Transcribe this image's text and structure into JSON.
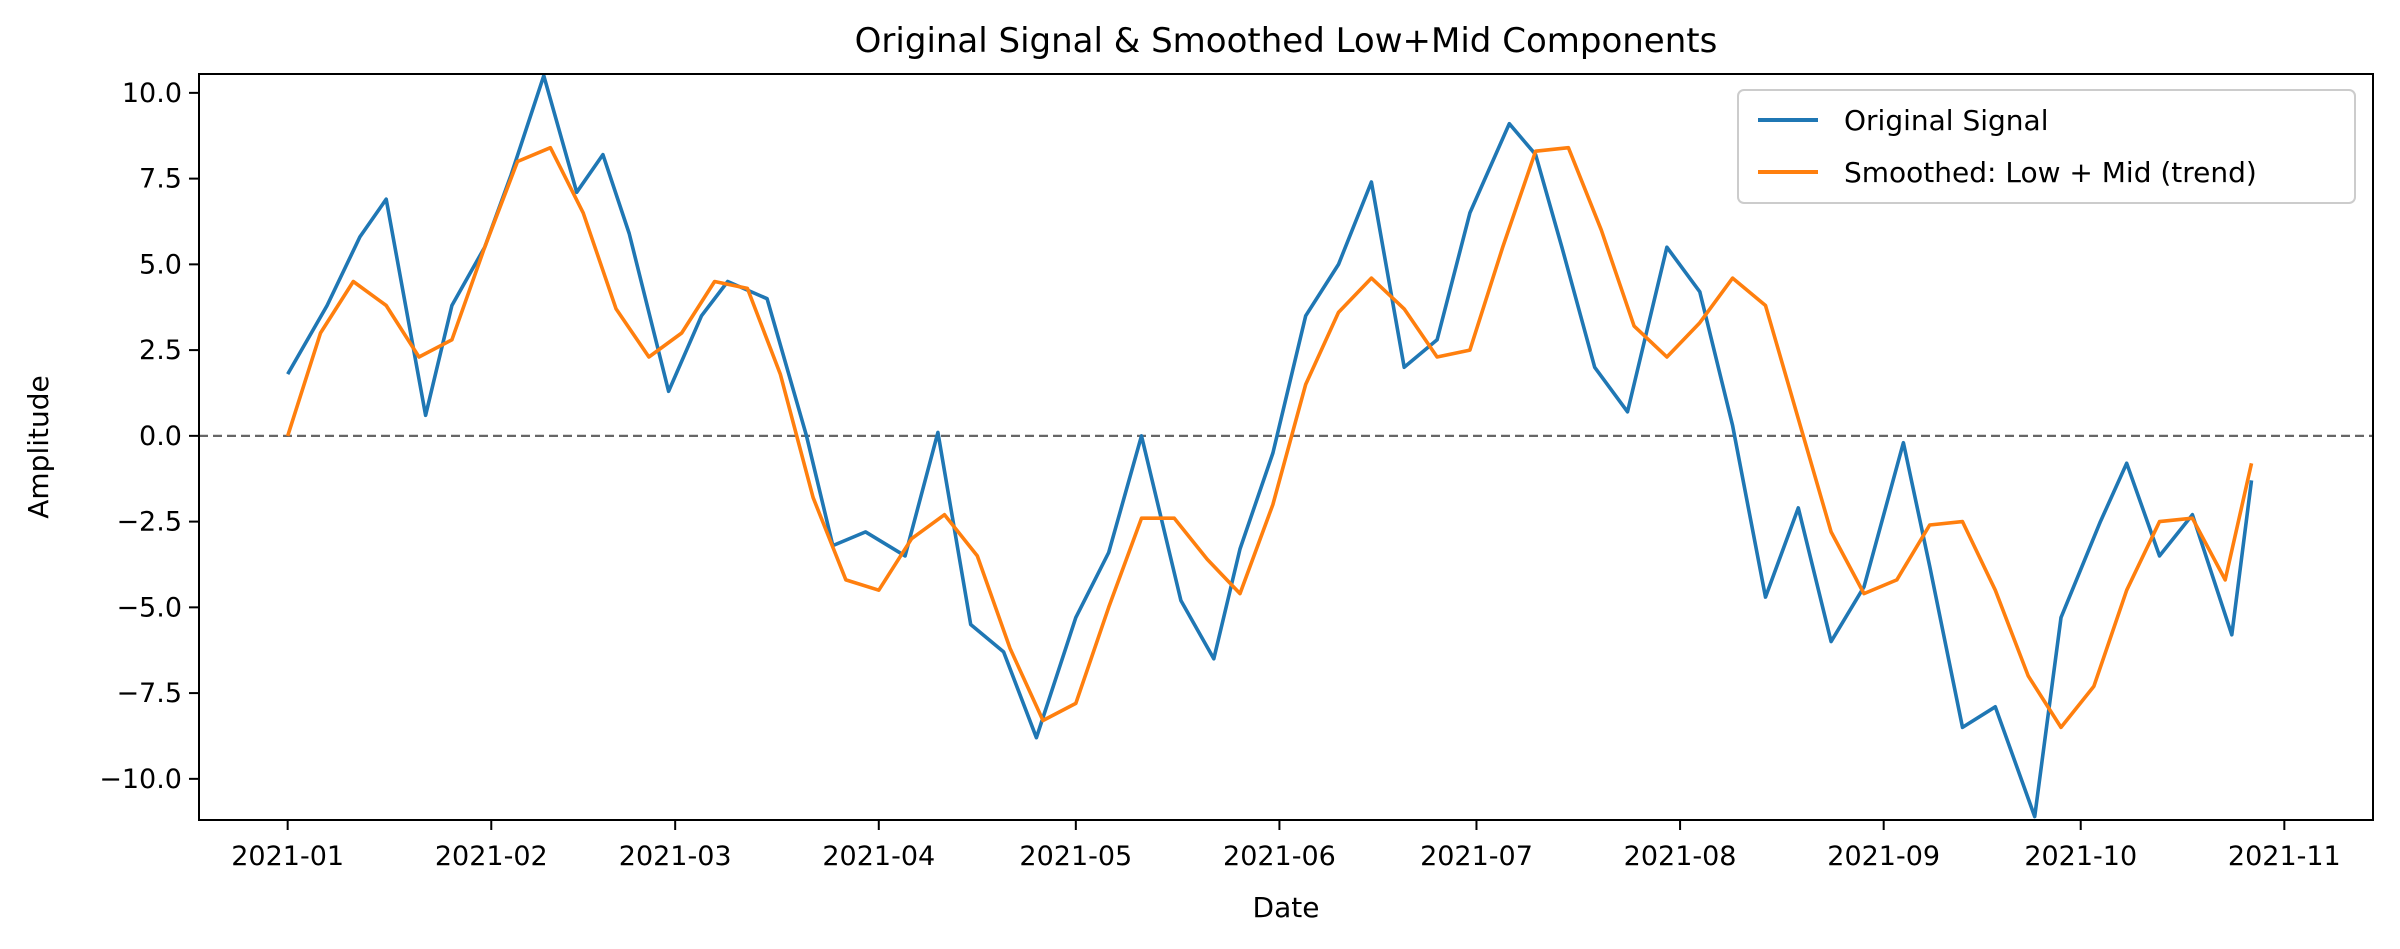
{
  "chart_data": {
    "type": "line",
    "title": "Original Signal & Smoothed Low+Mid Components",
    "xlabel": "Date",
    "ylabel": "Amplitude",
    "x_start": "2021-01-01",
    "x_end": "2021-10-27",
    "xlim_days": [
      -13.5,
      317.5
    ],
    "ylim": [
      -11.2,
      10.55
    ],
    "x_ticks": [
      {
        "label": "2021-01",
        "day": 0
      },
      {
        "label": "2021-02",
        "day": 31
      },
      {
        "label": "2021-03",
        "day": 59
      },
      {
        "label": "2021-04",
        "day": 90
      },
      {
        "label": "2021-05",
        "day": 120
      },
      {
        "label": "2021-06",
        "day": 151
      },
      {
        "label": "2021-07",
        "day": 181
      },
      {
        "label": "2021-08",
        "day": 212
      },
      {
        "label": "2021-09",
        "day": 243
      },
      {
        "label": "2021-10",
        "day": 273
      },
      {
        "label": "2021-11",
        "day": 304
      }
    ],
    "y_ticks": [
      {
        "label": "10.0",
        "value": 10.0
      },
      {
        "label": "7.5",
        "value": 7.5
      },
      {
        "label": "5.0",
        "value": 5.0
      },
      {
        "label": "2.5",
        "value": 2.5
      },
      {
        "label": "0.0",
        "value": 0.0
      },
      {
        "label": "−2.5",
        "value": -2.5
      },
      {
        "label": "−5.0",
        "value": -5.0
      },
      {
        "label": "−7.5",
        "value": -7.5
      },
      {
        "label": "−10.0",
        "value": -10.0
      }
    ],
    "reference_line": {
      "y": 0,
      "style": "dashed",
      "color": "#666666"
    },
    "legend": {
      "location": "top-right"
    },
    "series": [
      {
        "name": "Original Signal",
        "color": "#1f77b4",
        "x_days": [
          0,
          6,
          11,
          15,
          21,
          25,
          30,
          34,
          39,
          44,
          48,
          52,
          58,
          63,
          67,
          73,
          79,
          83,
          88,
          94,
          99,
          104,
          109,
          114,
          120,
          125,
          130,
          136,
          141,
          145,
          150,
          155,
          160,
          165,
          170,
          175,
          180,
          186,
          190,
          194,
          199,
          204,
          210,
          215,
          220,
          225,
          230,
          235,
          240,
          246,
          250,
          255,
          260,
          266,
          270,
          276,
          280,
          285,
          290,
          296,
          299
        ],
        "values": [
          1.8,
          3.8,
          5.8,
          6.9,
          0.6,
          3.8,
          5.5,
          7.6,
          10.5,
          7.1,
          8.2,
          5.9,
          1.3,
          3.5,
          4.5,
          4.0,
          0.0,
          -3.2,
          -2.8,
          -3.5,
          0.1,
          -5.5,
          -6.3,
          -8.8,
          -5.3,
          -3.4,
          0.0,
          -4.8,
          -6.5,
          -3.3,
          -0.5,
          3.5,
          5.0,
          7.4,
          2.0,
          2.8,
          6.5,
          9.1,
          8.2,
          5.5,
          2.0,
          0.7,
          5.5,
          4.2,
          0.3,
          -4.7,
          -2.1,
          -6.0,
          -4.4,
          -0.2,
          -3.8,
          -8.5,
          -7.9,
          -11.1,
          -5.3,
          -2.5,
          -0.8,
          -3.5,
          -2.3,
          -5.8,
          -1.3
        ]
      },
      {
        "name": "Smoothed: Low + Mid (trend)",
        "color": "#ff7f0e",
        "x_days": [
          0,
          5,
          10,
          15,
          20,
          25,
          30,
          35,
          40,
          45,
          50,
          55,
          60,
          65,
          70,
          75,
          80,
          85,
          90,
          95,
          100,
          105,
          110,
          115,
          120,
          125,
          130,
          135,
          140,
          145,
          150,
          155,
          160,
          165,
          170,
          175,
          180,
          185,
          190,
          195,
          200,
          205,
          210,
          215,
          220,
          225,
          230,
          235,
          240,
          245,
          250,
          255,
          260,
          265,
          270,
          275,
          280,
          285,
          290,
          295,
          299
        ],
        "values": [
          0.0,
          3.0,
          4.5,
          3.8,
          2.3,
          2.8,
          5.5,
          8.0,
          8.4,
          6.5,
          3.7,
          2.3,
          3.0,
          4.5,
          4.3,
          1.8,
          -1.8,
          -4.2,
          -4.5,
          -3.0,
          -2.3,
          -3.5,
          -6.2,
          -8.3,
          -7.8,
          -5.0,
          -2.4,
          -2.4,
          -3.6,
          -4.6,
          -2.0,
          1.5,
          3.6,
          4.6,
          3.7,
          2.3,
          2.5,
          5.5,
          8.3,
          8.4,
          6.0,
          3.2,
          2.3,
          3.3,
          4.6,
          3.8,
          0.5,
          -2.8,
          -4.6,
          -4.2,
          -2.6,
          -2.5,
          -4.5,
          -7.0,
          -8.5,
          -7.3,
          -4.5,
          -2.5,
          -2.4,
          -4.2,
          -0.8
        ]
      }
    ]
  }
}
